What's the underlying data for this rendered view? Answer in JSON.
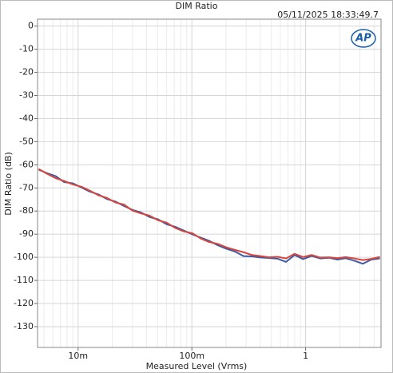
{
  "chart_data": {
    "type": "line",
    "title": "DIM Ratio",
    "timestamp": "05/11/2025 18:33:49.7",
    "logo": "AP",
    "x_label": "Measured Level (Vrms)",
    "y_label": "DIM Ratio (dB)",
    "xscale": "log",
    "grid": true,
    "minor_grid": true,
    "xlim": [
      0.0044,
      4.6
    ],
    "ylim": [
      -139,
      3
    ],
    "xticks": [
      {
        "value": 0.01,
        "label": "10m"
      },
      {
        "value": 0.1,
        "label": "100m"
      },
      1
    ],
    "yticks": [
      0,
      -10,
      -20,
      -30,
      -40,
      -50,
      -60,
      -70,
      -80,
      -90,
      -100,
      -110,
      -120,
      -130
    ],
    "x": [
      0.0045,
      0.00534,
      0.00636,
      0.00755,
      0.00898,
      0.0107,
      0.0127,
      0.0151,
      0.0179,
      0.0213,
      0.0253,
      0.0301,
      0.0357,
      0.0425,
      0.0505,
      0.06,
      0.0713,
      0.0847,
      0.101,
      0.12,
      0.142,
      0.169,
      0.201,
      0.239,
      0.284,
      0.337,
      0.401,
      0.476,
      0.566,
      0.673,
      0.8,
      0.95,
      1.13,
      1.34,
      1.6,
      1.9,
      2.25,
      2.68,
      3.18,
      3.78,
      4.5
    ],
    "series": [
      {
        "color": "#3b5ba5",
        "values": [
          -62.1,
          -63.6,
          -64.9,
          -67.5,
          -68.0,
          -69.8,
          -71.6,
          -72.8,
          -74.8,
          -75.9,
          -77.8,
          -79.5,
          -80.6,
          -82.6,
          -83.6,
          -85.7,
          -86.8,
          -88.4,
          -90.1,
          -91.5,
          -92.9,
          -94.8,
          -96.3,
          -97.5,
          -99.5,
          -99.6,
          -100.1,
          -100.3,
          -100.6,
          -102.0,
          -99.0,
          -100.8,
          -99.4,
          -100.5,
          -100.2,
          -101.0,
          -100.4,
          -101.5,
          -102.8,
          -101.0,
          -100.5
        ]
      },
      {
        "color": "#d9453c",
        "values": [
          -61.8,
          -63.9,
          -65.8,
          -67.0,
          -68.5,
          -69.5,
          -71.2,
          -73.2,
          -74.3,
          -76.3,
          -77.2,
          -79.8,
          -81.0,
          -82.0,
          -84.0,
          -85.0,
          -87.3,
          -88.8,
          -89.6,
          -91.9,
          -93.4,
          -94.2,
          -95.7,
          -96.8,
          -97.8,
          -99.0,
          -99.5,
          -100.0,
          -99.8,
          -100.5,
          -98.5,
          -99.9,
          -99.0,
          -100.1,
          -100.0,
          -100.4,
          -99.9,
          -100.5,
          -101.2,
          -100.7,
          -99.8
        ]
      }
    ]
  }
}
